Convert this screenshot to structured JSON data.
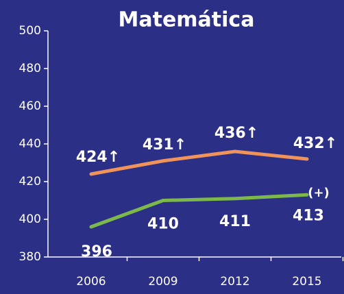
{
  "chart_data": {
    "type": "line",
    "title": "Matemática",
    "categories": [
      "2006",
      "2009",
      "2012",
      "2015"
    ],
    "series": [
      {
        "color": "#f0935a",
        "values": [
          424,
          431,
          436,
          432
        ],
        "value_labels": [
          "424↑",
          "431↑",
          "436↑",
          "432↑"
        ]
      },
      {
        "color": "#7cb84a",
        "values": [
          396,
          410,
          411,
          413
        ]
      }
    ],
    "annotations": [
      "(+)"
    ],
    "ylim": [
      380,
      500
    ],
    "yticks": [
      380,
      400,
      420,
      440,
      460,
      480,
      500
    ]
  }
}
